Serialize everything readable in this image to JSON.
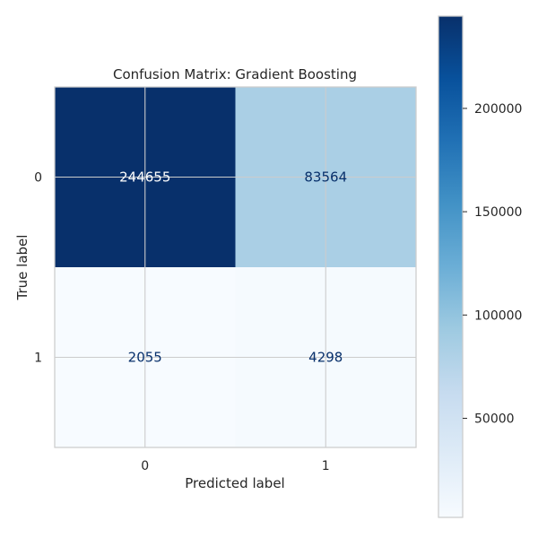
{
  "chart_data": {
    "type": "heatmap",
    "title": "Confusion Matrix: Gradient Boosting",
    "xlabel": "Predicted label",
    "ylabel": "True label",
    "x_tick_labels": [
      "0",
      "1"
    ],
    "y_tick_labels": [
      "0",
      "1"
    ],
    "matrix": [
      [
        244655,
        83564
      ],
      [
        2055,
        4298
      ]
    ],
    "cell_labels": [
      [
        "244655",
        "83564"
      ],
      [
        "2055",
        "4298"
      ]
    ],
    "colormap": "Blues",
    "colorbar": {
      "min": 2055,
      "max": 244655,
      "ticks": [
        50000,
        100000,
        150000,
        200000
      ],
      "tick_labels": [
        "50000",
        "100000",
        "150000",
        "200000"
      ]
    },
    "grid": true
  }
}
